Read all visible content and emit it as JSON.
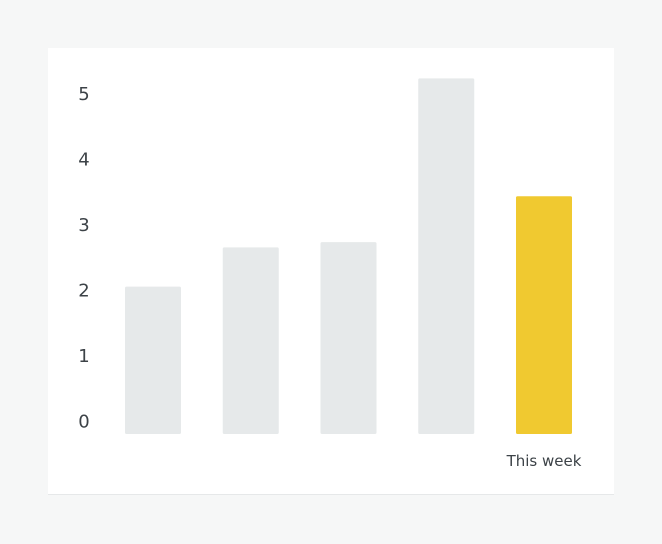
{
  "colors": {
    "background": "#f6f7f7",
    "card": "#ffffff",
    "bar_default": "#e6e9ea",
    "bar_highlight": "#f0c930",
    "text": "#3c4247"
  },
  "chart_data": {
    "type": "bar",
    "title": "",
    "xlabel": "",
    "ylabel": "",
    "ylim": [
      0,
      5
    ],
    "yticks": [
      0,
      1,
      2,
      3,
      4,
      5
    ],
    "grid": false,
    "legend": "none",
    "categories": [
      "",
      "",
      "",
      "",
      "This week"
    ],
    "values": [
      2.25,
      2.85,
      2.93,
      5.43,
      3.63
    ],
    "highlight_index": 4
  }
}
